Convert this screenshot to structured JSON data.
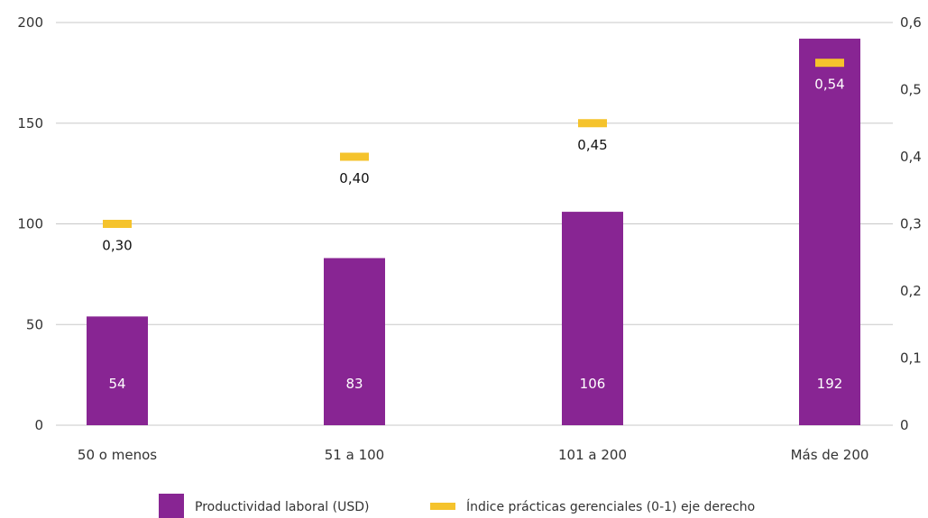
{
  "chart_data": {
    "type": "bar",
    "categories": [
      "50 o menos",
      "51 a 100",
      "101 a 200",
      "Más de 200"
    ],
    "series": [
      {
        "name": "Productividad laboral (USD)",
        "type": "bar",
        "axis": "left",
        "color": "#882593",
        "values": [
          54,
          83,
          106,
          192
        ],
        "labels": [
          "54",
          "83",
          "106",
          "192"
        ]
      },
      {
        "name": "Índice prácticas gerenciales (0-1) eje derecho",
        "type": "marker",
        "axis": "right",
        "color": "#f5c32c",
        "values": [
          0.3,
          0.4,
          0.45,
          0.54
        ],
        "labels": [
          "0,30",
          "0,40",
          "0,45",
          "0,54"
        ]
      }
    ],
    "y_left": {
      "ylim": [
        0,
        200
      ],
      "ticks": [
        0,
        50,
        100,
        150,
        200
      ],
      "tick_labels": [
        "0",
        "50",
        "100",
        "150",
        "200"
      ]
    },
    "y_right": {
      "ylim": [
        0,
        0.6
      ],
      "ticks": [
        0,
        0.1,
        0.2,
        0.3,
        0.4,
        0.5,
        0.6
      ],
      "tick_labels": [
        "0",
        "0,1",
        "0,2",
        "0,3",
        "0,4",
        "0,5",
        "0,6"
      ]
    },
    "grid": "horizontal",
    "legend_position": "bottom"
  }
}
